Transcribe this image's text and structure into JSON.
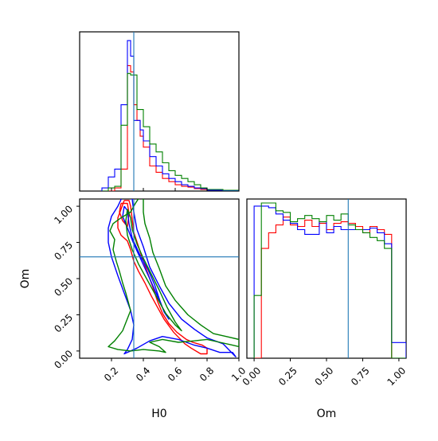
{
  "chart_data": {
    "type": "corner",
    "parameters": [
      "H0",
      "Om"
    ],
    "truths": {
      "H0": 0.34,
      "Om": 0.65
    },
    "series_colors": [
      "#ff0000",
      "#0000ff",
      "#008000"
    ],
    "truth_color": "#1f77b4",
    "axes": {
      "H0": {
        "range": [
          0.0,
          1.0
        ],
        "tick_values": [
          0.2,
          0.4,
          0.6,
          0.8,
          1.0
        ],
        "tick_labels": [
          "0.2",
          "0.4",
          "0.6",
          "0.8",
          "1.0"
        ],
        "label": "H0"
      },
      "Om": {
        "range": [
          -0.05,
          1.05
        ],
        "tick_values": [
          0.0,
          0.25,
          0.5,
          0.75,
          1.0
        ],
        "tick_labels": [
          "0.00",
          "0.25",
          "0.50",
          "0.75",
          "1.00"
        ],
        "label": "Om"
      }
    },
    "hist_H0": {
      "bin_edges": [
        0.14,
        0.18,
        0.22,
        0.26,
        0.3,
        0.32,
        0.34,
        0.36,
        0.38,
        0.4,
        0.44,
        0.48,
        0.52,
        0.56,
        0.6,
        0.64,
        0.68,
        0.72,
        0.76,
        0.8,
        0.9,
        1.0
      ],
      "series": [
        {
          "color": "#ff0000",
          "values": [
            0,
            0,
            0.02,
            0.14,
            0.8,
            0.76,
            0.55,
            0.45,
            0.35,
            0.28,
            0.16,
            0.12,
            0.08,
            0.06,
            0.04,
            0.03,
            0.025,
            0.015,
            0.01,
            0.005,
            0.002
          ]
        },
        {
          "color": "#0000ff",
          "values": [
            0.02,
            0.09,
            0.14,
            0.55,
            0.96,
            0.86,
            0.45,
            0.45,
            0.39,
            0.32,
            0.22,
            0.16,
            0.11,
            0.08,
            0.06,
            0.04,
            0.03,
            0.02,
            0.015,
            0.005,
            0.002
          ]
        },
        {
          "color": "#008000",
          "values": [
            0,
            0.02,
            0.03,
            0.42,
            0.75,
            0.74,
            0.74,
            0.52,
            0.52,
            0.41,
            0.3,
            0.25,
            0.18,
            0.13,
            0.1,
            0.08,
            0.06,
            0.04,
            0.02,
            0.01,
            0.005
          ]
        }
      ]
    },
    "hist_Om": {
      "bin_edges": [
        0.0,
        0.05,
        0.1,
        0.15,
        0.2,
        0.25,
        0.3,
        0.35,
        0.4,
        0.45,
        0.5,
        0.55,
        0.6,
        0.65,
        0.7,
        0.75,
        0.8,
        0.85,
        0.9,
        0.95,
        1.0,
        1.05
      ],
      "series": [
        {
          "color": "#ff0000",
          "values": [
            0.0,
            0.7,
            0.8,
            0.85,
            0.9,
            0.85,
            0.84,
            0.88,
            0.84,
            0.86,
            0.82,
            0.86,
            0.87,
            0.86,
            0.84,
            0.8,
            0.84,
            0.82,
            0.79,
            0.0,
            0.0
          ]
        },
        {
          "color": "#0000ff",
          "values": [
            0.97,
            0.97,
            0.96,
            0.92,
            0.88,
            0.86,
            0.82,
            0.79,
            0.79,
            0.87,
            0.8,
            0.84,
            0.82,
            0.82,
            0.82,
            0.82,
            0.83,
            0.8,
            0.73,
            0.1,
            0.1
          ]
        },
        {
          "color": "#008000",
          "values": [
            0.4,
            0.99,
            0.99,
            0.94,
            0.93,
            0.87,
            0.89,
            0.91,
            0.89,
            0.87,
            0.91,
            0.88,
            0.92,
            0.85,
            0.82,
            0.8,
            0.77,
            0.75,
            0.7,
            0.0,
            0.0
          ]
        }
      ]
    },
    "contours_2d": [
      {
        "color": "#ff0000",
        "level": "outer",
        "points": [
          [
            0.28,
            1.04
          ],
          [
            0.26,
            0.98
          ],
          [
            0.24,
            0.92
          ],
          [
            0.24,
            0.85
          ],
          [
            0.26,
            0.8
          ],
          [
            0.3,
            0.76
          ],
          [
            0.32,
            0.7
          ],
          [
            0.34,
            0.62
          ],
          [
            0.37,
            0.55
          ],
          [
            0.41,
            0.47
          ],
          [
            0.45,
            0.38
          ],
          [
            0.49,
            0.3
          ],
          [
            0.53,
            0.22
          ],
          [
            0.59,
            0.13
          ],
          [
            0.66,
            0.05
          ],
          [
            0.7,
            0.02
          ],
          [
            0.76,
            -0.02
          ],
          [
            0.8,
            -0.02
          ],
          [
            0.8,
            0.02
          ],
          [
            0.77,
            0.04
          ],
          [
            0.71,
            0.06
          ],
          [
            0.67,
            0.08
          ],
          [
            0.61,
            0.13
          ],
          [
            0.56,
            0.19
          ],
          [
            0.52,
            0.26
          ],
          [
            0.49,
            0.34
          ],
          [
            0.46,
            0.44
          ],
          [
            0.43,
            0.53
          ],
          [
            0.4,
            0.62
          ],
          [
            0.37,
            0.72
          ],
          [
            0.34,
            0.82
          ],
          [
            0.33,
            0.91
          ],
          [
            0.32,
            1.0
          ],
          [
            0.31,
            1.04
          ],
          [
            0.28,
            1.04
          ]
        ]
      },
      {
        "color": "#ff0000",
        "level": "inner",
        "points": [
          [
            0.26,
            1.02
          ],
          [
            0.25,
            0.96
          ],
          [
            0.27,
            0.9
          ],
          [
            0.3,
            0.86
          ],
          [
            0.31,
            0.95
          ],
          [
            0.3,
            1.02
          ],
          [
            0.26,
            1.02
          ]
        ]
      },
      {
        "color": "#0000ff",
        "level": "outer",
        "points": [
          [
            0.27,
            1.07
          ],
          [
            0.24,
            1.0
          ],
          [
            0.2,
            0.93
          ],
          [
            0.18,
            0.85
          ],
          [
            0.18,
            0.75
          ],
          [
            0.2,
            0.65
          ],
          [
            0.24,
            0.52
          ],
          [
            0.28,
            0.4
          ],
          [
            0.32,
            0.28
          ],
          [
            0.34,
            0.18
          ],
          [
            0.33,
            0.08
          ],
          [
            0.3,
            0.01
          ],
          [
            0.28,
            -0.02
          ],
          [
            0.36,
            0.02
          ],
          [
            0.44,
            0.07
          ],
          [
            0.52,
            0.1
          ],
          [
            0.62,
            0.08
          ],
          [
            0.72,
            0.04
          ],
          [
            0.8,
            0.02
          ],
          [
            0.88,
            -0.01
          ],
          [
            0.96,
            -0.01
          ],
          [
            0.98,
            -0.04
          ],
          [
            0.9,
            0.05
          ],
          [
            0.8,
            0.09
          ],
          [
            0.72,
            0.15
          ],
          [
            0.64,
            0.22
          ],
          [
            0.56,
            0.33
          ],
          [
            0.5,
            0.45
          ],
          [
            0.44,
            0.58
          ],
          [
            0.4,
            0.72
          ],
          [
            0.36,
            0.84
          ],
          [
            0.34,
            0.96
          ],
          [
            0.33,
            1.05
          ],
          [
            0.27,
            1.07
          ]
        ]
      },
      {
        "color": "#0000ff",
        "level": "inner",
        "points": [
          [
            0.28,
            1.0
          ],
          [
            0.27,
            0.93
          ],
          [
            0.3,
            0.85
          ],
          [
            0.34,
            0.74
          ],
          [
            0.39,
            0.62
          ],
          [
            0.44,
            0.5
          ],
          [
            0.48,
            0.4
          ],
          [
            0.52,
            0.3
          ],
          [
            0.56,
            0.22
          ],
          [
            0.53,
            0.27
          ],
          [
            0.5,
            0.36
          ],
          [
            0.47,
            0.46
          ],
          [
            0.43,
            0.56
          ],
          [
            0.38,
            0.66
          ],
          [
            0.33,
            0.78
          ],
          [
            0.31,
            0.88
          ],
          [
            0.3,
            0.97
          ],
          [
            0.28,
            1.0
          ]
        ]
      },
      {
        "color": "#008000",
        "level": "outer",
        "points": [
          [
            0.38,
            1.07
          ],
          [
            0.35,
            1.02
          ],
          [
            0.32,
            0.96
          ],
          [
            0.26,
            0.92
          ],
          [
            0.21,
            0.88
          ],
          [
            0.19,
            0.83
          ],
          [
            0.22,
            0.77
          ],
          [
            0.21,
            0.7
          ],
          [
            0.23,
            0.62
          ],
          [
            0.25,
            0.55
          ],
          [
            0.27,
            0.47
          ],
          [
            0.29,
            0.4
          ],
          [
            0.32,
            0.28
          ],
          [
            0.27,
            0.14
          ],
          [
            0.22,
            0.07
          ],
          [
            0.18,
            0.03
          ],
          [
            0.24,
            0.01
          ],
          [
            0.32,
            0.0
          ],
          [
            0.4,
            0.01
          ],
          [
            0.5,
            0.0
          ],
          [
            0.54,
            -0.01
          ],
          [
            0.5,
            0.03
          ],
          [
            0.44,
            0.06
          ],
          [
            0.52,
            0.08
          ],
          [
            0.62,
            0.06
          ],
          [
            0.72,
            0.07
          ],
          [
            0.8,
            0.08
          ],
          [
            0.88,
            0.06
          ],
          [
            0.96,
            0.04
          ],
          [
            1.0,
            0.03
          ],
          [
            1.0,
            0.08
          ],
          [
            0.92,
            0.1
          ],
          [
            0.84,
            0.12
          ],
          [
            0.76,
            0.18
          ],
          [
            0.68,
            0.25
          ],
          [
            0.6,
            0.35
          ],
          [
            0.54,
            0.45
          ],
          [
            0.5,
            0.57
          ],
          [
            0.46,
            0.68
          ],
          [
            0.44,
            0.78
          ],
          [
            0.41,
            0.88
          ],
          [
            0.4,
            0.96
          ],
          [
            0.4,
            1.05
          ],
          [
            0.38,
            1.07
          ]
        ]
      },
      {
        "color": "#008000",
        "level": "inner",
        "points": [
          [
            0.3,
            0.98
          ],
          [
            0.29,
            0.9
          ],
          [
            0.3,
            0.8
          ],
          [
            0.33,
            0.7
          ],
          [
            0.37,
            0.6
          ],
          [
            0.42,
            0.5
          ],
          [
            0.48,
            0.38
          ],
          [
            0.54,
            0.26
          ],
          [
            0.6,
            0.18
          ],
          [
            0.64,
            0.14
          ],
          [
            0.6,
            0.2
          ],
          [
            0.55,
            0.3
          ],
          [
            0.5,
            0.42
          ],
          [
            0.45,
            0.53
          ],
          [
            0.4,
            0.64
          ],
          [
            0.36,
            0.74
          ],
          [
            0.33,
            0.84
          ],
          [
            0.32,
            0.92
          ],
          [
            0.3,
            0.98
          ]
        ]
      }
    ]
  }
}
